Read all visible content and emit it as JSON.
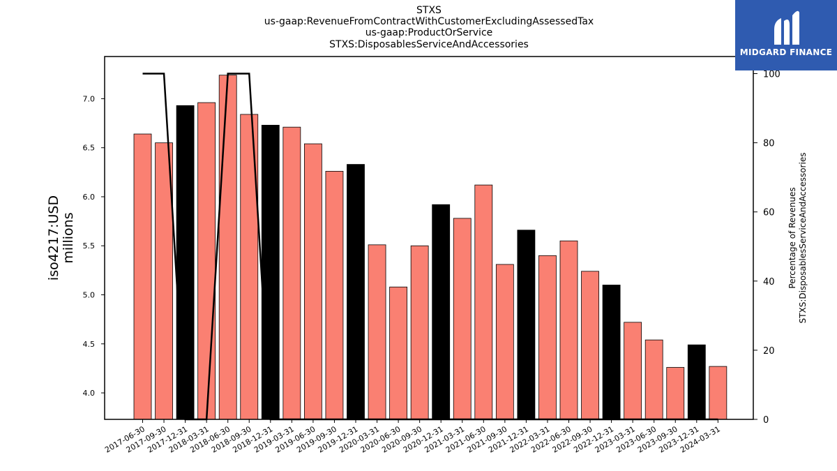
{
  "title_lines": [
    "STXS",
    "us-gaap:RevenueFromContractWithCustomerExcludingAssessedTax",
    "us-gaap:ProductOrService",
    "STXS:DisposablesServiceAndAccessories"
  ],
  "logo": {
    "text": "MIDGARD FINANCE",
    "background": "#2f5bb0"
  },
  "chart_data": {
    "type": "bar",
    "categories": [
      "2017-06-30",
      "2017-09-30",
      "2017-12-31",
      "2018-03-31",
      "2018-06-30",
      "2018-09-30",
      "2018-12-31",
      "2019-03-31",
      "2019-06-30",
      "2019-09-30",
      "2019-12-31",
      "2020-03-31",
      "2020-06-30",
      "2020-09-30",
      "2020-12-31",
      "2021-03-31",
      "2021-06-30",
      "2021-09-30",
      "2021-12-31",
      "2022-03-31",
      "2022-06-30",
      "2022-09-30",
      "2022-12-31",
      "2023-03-31",
      "2023-06-30",
      "2023-09-30",
      "2023-12-31",
      "2024-03-31"
    ],
    "values": [
      6.64,
      6.55,
      6.93,
      6.96,
      7.24,
      6.84,
      6.73,
      6.71,
      6.54,
      6.26,
      6.33,
      5.51,
      5.08,
      5.5,
      5.92,
      5.78,
      6.12,
      5.31,
      5.66,
      5.4,
      5.55,
      5.24,
      5.1,
      4.72,
      4.54,
      4.26,
      4.49,
      4.27
    ],
    "bar_colors": [
      "#fa8072",
      "#fa8072",
      "#000000",
      "#fa8072",
      "#fa8072",
      "#fa8072",
      "#000000",
      "#fa8072",
      "#fa8072",
      "#fa8072",
      "#000000",
      "#fa8072",
      "#fa8072",
      "#fa8072",
      "#000000",
      "#fa8072",
      "#fa8072",
      "#fa8072",
      "#000000",
      "#fa8072",
      "#fa8072",
      "#fa8072",
      "#000000",
      "#fa8072",
      "#fa8072",
      "#fa8072",
      "#000000",
      "#fa8072"
    ],
    "percent_series": [
      100,
      100,
      0,
      0,
      100,
      100,
      0,
      0,
      0,
      0,
      0,
      0,
      0,
      0,
      0,
      0,
      0,
      0,
      0,
      0,
      0,
      0,
      0,
      0,
      0,
      0,
      0,
      0
    ],
    "ylabel": "iso4217:USD\nmillions",
    "y2label": "Percentage of Revenues\nSTXS:DisposablesServiceAndAccessories",
    "ylim": [
      3.73,
      7.43
    ],
    "y2lim": [
      0,
      100
    ],
    "yticks": [
      4.0,
      4.5,
      5.0,
      5.5,
      6.0,
      6.5,
      7.0
    ],
    "y2ticks": [
      0,
      20,
      40,
      60,
      80,
      100
    ],
    "grid": false,
    "colors": {
      "normal": "#fa8072",
      "year_end": "#000000",
      "line": "#000000"
    }
  }
}
